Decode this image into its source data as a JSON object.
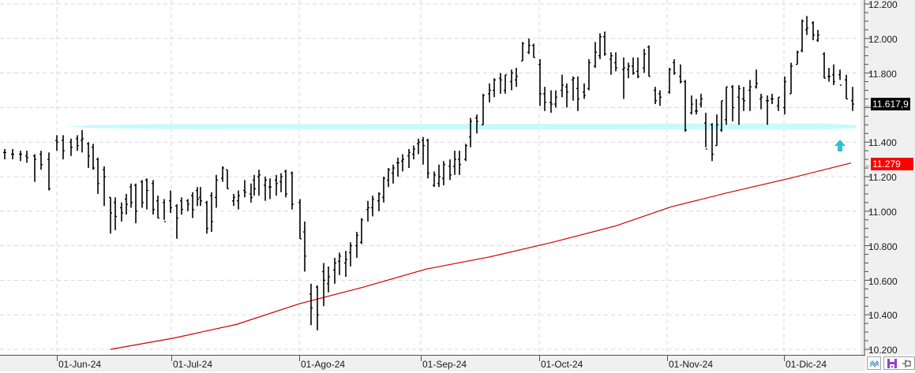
{
  "chart_data": {
    "type": "ohlc",
    "title": "",
    "xlabel": "",
    "ylabel": "",
    "ylim": [
      10200,
      12200
    ],
    "y_ticks": [
      "12.200",
      "12.000",
      "11.800",
      "11.600",
      "11.400",
      "11.200",
      "11.000",
      "10.800",
      "10.600",
      "10.400",
      "10.200"
    ],
    "x_ticks": [
      "01-Jun-24",
      "01-Jul-24",
      "01-Ago-24",
      "01-Sep-24",
      "01-Oct-24",
      "01-Nov-24",
      "01-Dic-24"
    ],
    "grid": true,
    "last_price_label": "11.617,9",
    "moving_average_label": "11.279",
    "support_level": 11490,
    "moving_average": {
      "color": "#cc0000",
      "points": [
        [
          140,
          10200
        ],
        [
          220,
          10265
        ],
        [
          300,
          10345
        ],
        [
          380,
          10465
        ],
        [
          460,
          10560
        ],
        [
          540,
          10665
        ],
        [
          620,
          10735
        ],
        [
          700,
          10820
        ],
        [
          780,
          10915
        ],
        [
          850,
          11025
        ],
        [
          920,
          11105
        ],
        [
          1000,
          11190
        ],
        [
          1078,
          11279
        ]
      ]
    },
    "bars": [
      [
        6,
        11360,
        11300,
        11340,
        11340
      ],
      [
        16,
        11360,
        11300,
        11330,
        11330
      ],
      [
        26,
        11350,
        11290,
        11330,
        11330
      ],
      [
        34,
        11350,
        11280,
        11320,
        11310
      ],
      [
        44,
        11330,
        11170,
        11320,
        11300
      ],
      [
        52,
        11350,
        11240,
        11330,
        11270
      ],
      [
        62,
        11340,
        11120,
        11300,
        11130
      ],
      [
        72,
        11440,
        11350,
        11410,
        11400
      ],
      [
        80,
        11440,
        11300,
        11410,
        11350
      ],
      [
        90,
        11420,
        11320,
        11400,
        11370
      ],
      [
        98,
        11440,
        11350,
        11420,
        11380
      ],
      [
        104,
        11470,
        11340,
        11410,
        11420
      ],
      [
        112,
        11400,
        11250,
        11390,
        11320
      ],
      [
        118,
        11390,
        11240,
        11370,
        11250
      ],
      [
        124,
        11310,
        11100,
        11300,
        11160
      ],
      [
        132,
        11260,
        11030,
        11240,
        11200
      ],
      [
        140,
        11080,
        10870,
        11080,
        10990
      ],
      [
        146,
        11080,
        10890,
        11050,
        10970
      ],
      [
        154,
        11050,
        10940,
        11020,
        10990
      ],
      [
        160,
        11100,
        10980,
        11070,
        11040
      ],
      [
        166,
        11160,
        11020,
        11140,
        11050
      ],
      [
        172,
        11160,
        10930,
        11150,
        11000
      ],
      [
        180,
        11180,
        11020,
        11170,
        11050
      ],
      [
        186,
        11190,
        11010,
        11180,
        11120
      ],
      [
        194,
        11180,
        10980,
        11160,
        11010
      ],
      [
        200,
        11090,
        10960,
        11060,
        10960
      ],
      [
        208,
        11070,
        10950,
        11050,
        10940
      ],
      [
        216,
        11120,
        10990,
        11060,
        11020
      ],
      [
        224,
        11040,
        10840,
        11030,
        10960
      ],
      [
        230,
        11080,
        10980,
        11060,
        11010
      ],
      [
        238,
        11070,
        11000,
        11060,
        11040
      ],
      [
        244,
        11110,
        10960,
        11090,
        11010
      ],
      [
        250,
        11140,
        11030,
        11120,
        11070
      ],
      [
        254,
        11140,
        11030,
        11080,
        11060
      ],
      [
        262,
        11060,
        10870,
        11050,
        10900
      ],
      [
        268,
        11110,
        10880,
        11090,
        10940
      ],
      [
        274,
        11210,
        11020,
        11080,
        11180
      ],
      [
        282,
        11260,
        11170,
        11190,
        11250
      ],
      [
        288,
        11240,
        11130,
        11240,
        11130
      ],
      [
        296,
        11100,
        11030,
        11060,
        11080
      ],
      [
        302,
        11120,
        11010,
        11060,
        11090
      ],
      [
        310,
        11180,
        11080,
        11120,
        11110
      ],
      [
        318,
        11160,
        11050,
        11100,
        11080
      ],
      [
        322,
        11210,
        11090,
        11180,
        11130
      ],
      [
        328,
        11240,
        11090,
        11200,
        11210
      ],
      [
        336,
        11200,
        11060,
        11150,
        11180
      ],
      [
        342,
        11190,
        11070,
        11140,
        11140
      ],
      [
        350,
        11210,
        11090,
        11180,
        11160
      ],
      [
        356,
        11220,
        11110,
        11170,
        11200
      ],
      [
        362,
        11240,
        11080,
        11230,
        11100
      ],
      [
        370,
        11230,
        11010,
        11220,
        11040
      ],
      [
        380,
        11070,
        10840,
        11050,
        10840
      ],
      [
        386,
        10940,
        10650,
        10880,
        10740
      ],
      [
        394,
        10580,
        10340,
        10520,
        10440
      ],
      [
        402,
        10570,
        10310,
        10560,
        10400
      ],
      [
        410,
        10700,
        10450,
        10650,
        10600
      ],
      [
        416,
        10680,
        10530,
        10580,
        10620
      ],
      [
        424,
        10730,
        10580,
        10660,
        10700
      ],
      [
        430,
        10760,
        10630,
        10710,
        10740
      ],
      [
        438,
        10770,
        10620,
        10700,
        10720
      ],
      [
        444,
        10820,
        10680,
        10760,
        10800
      ],
      [
        452,
        10880,
        10730,
        10800,
        10860
      ],
      [
        458,
        10960,
        10810,
        10820,
        10950
      ],
      [
        466,
        11060,
        10940,
        11010,
        11020
      ],
      [
        472,
        11090,
        10970,
        11020,
        11070
      ],
      [
        480,
        11110,
        11000,
        11060,
        11100
      ],
      [
        486,
        11200,
        11050,
        11080,
        11190
      ],
      [
        492,
        11250,
        11140,
        11180,
        11240
      ],
      [
        498,
        11270,
        11160,
        11220,
        11250
      ],
      [
        504,
        11310,
        11200,
        11280,
        11280
      ],
      [
        510,
        11330,
        11230,
        11290,
        11300
      ],
      [
        518,
        11360,
        11250,
        11320,
        11340
      ],
      [
        524,
        11380,
        11300,
        11330,
        11360
      ],
      [
        530,
        11420,
        11330,
        11390,
        11400
      ],
      [
        536,
        11430,
        11270,
        11410,
        11380
      ],
      [
        542,
        11420,
        11190,
        11410,
        11220
      ],
      [
        550,
        11230,
        11140,
        11150,
        11210
      ],
      [
        556,
        11270,
        11140,
        11160,
        11200
      ],
      [
        562,
        11290,
        11150,
        11190,
        11270
      ],
      [
        570,
        11300,
        11180,
        11260,
        11210
      ],
      [
        576,
        11350,
        11210,
        11260,
        11300
      ],
      [
        582,
        11350,
        11210,
        11300,
        11270
      ],
      [
        590,
        11390,
        11290,
        11300,
        11380
      ],
      [
        596,
        11540,
        11370,
        11430,
        11520
      ],
      [
        604,
        11560,
        11450,
        11540,
        11520
      ],
      [
        612,
        11680,
        11500,
        11500,
        11670
      ],
      [
        620,
        11740,
        11630,
        11680,
        11700
      ],
      [
        626,
        11770,
        11660,
        11700,
        11760
      ],
      [
        634,
        11800,
        11680,
        11770,
        11760
      ],
      [
        640,
        11790,
        11680,
        11700,
        11790
      ],
      [
        648,
        11820,
        11700,
        11750,
        11800
      ],
      [
        654,
        11830,
        11720,
        11760,
        11780
      ],
      [
        662,
        11980,
        11870,
        11870,
        11970
      ],
      [
        670,
        12000,
        11910,
        11920,
        11960
      ],
      [
        676,
        11970,
        11890,
        11960,
        11890
      ],
      [
        684,
        11880,
        11610,
        11850,
        11680
      ],
      [
        690,
        11720,
        11580,
        11680,
        11630
      ],
      [
        698,
        11700,
        11570,
        11630,
        11620
      ],
      [
        704,
        11700,
        11600,
        11620,
        11660
      ],
      [
        712,
        11790,
        11660,
        11700,
        11730
      ],
      [
        718,
        11740,
        11600,
        11720,
        11690
      ],
      [
        726,
        11780,
        11640,
        11760,
        11770
      ],
      [
        732,
        11780,
        11580,
        11710,
        11650
      ],
      [
        740,
        11740,
        11650,
        11690,
        11670
      ],
      [
        746,
        11880,
        11700,
        11710,
        11860
      ],
      [
        754,
        11980,
        11830,
        11840,
        11920
      ],
      [
        760,
        12030,
        11880,
        11900,
        12010
      ],
      [
        766,
        12040,
        11900,
        12010,
        11910
      ],
      [
        774,
        11920,
        11790,
        11880,
        11900
      ],
      [
        780,
        11920,
        11810,
        11860,
        11830
      ],
      [
        790,
        11890,
        11650,
        11820,
        11830
      ],
      [
        796,
        11860,
        11770,
        11820,
        11840
      ],
      [
        802,
        11890,
        11790,
        11840,
        11800
      ],
      [
        808,
        11890,
        11770,
        11810,
        11780
      ],
      [
        816,
        11940,
        11800,
        11830,
        11910
      ],
      [
        822,
        11960,
        11780,
        11950,
        11780
      ],
      [
        830,
        11720,
        11620,
        11700,
        11640
      ],
      [
        836,
        11700,
        11610,
        11680,
        11660
      ],
      [
        848,
        11830,
        11680,
        11690,
        11820
      ],
      [
        854,
        11880,
        11790,
        11860,
        11800
      ],
      [
        862,
        11850,
        11740,
        11780,
        11750
      ],
      [
        868,
        11760,
        11460,
        11750,
        11470
      ],
      [
        876,
        11670,
        11560,
        11570,
        11620
      ],
      [
        882,
        11650,
        11560,
        11580,
        11580
      ],
      [
        888,
        11680,
        11600,
        11620,
        11650
      ],
      [
        894,
        11570,
        11370,
        11510,
        11360
      ],
      [
        902,
        11510,
        11290,
        11500,
        11330
      ],
      [
        908,
        11560,
        11380,
        11380,
        11500
      ],
      [
        914,
        11640,
        11460,
        11470,
        11640
      ],
      [
        920,
        11720,
        11500,
        11530,
        11720
      ],
      [
        928,
        11730,
        11520,
        11720,
        11600
      ],
      [
        936,
        11730,
        11500,
        11660,
        11710
      ],
      [
        942,
        11720,
        11580,
        11650,
        11640
      ],
      [
        950,
        11760,
        11580,
        11700,
        11720
      ],
      [
        958,
        11820,
        11710,
        11720,
        11740
      ],
      [
        964,
        11680,
        11590,
        11650,
        11660
      ],
      [
        972,
        11670,
        11500,
        11640,
        11640
      ],
      [
        978,
        11680,
        11620,
        11650,
        11650
      ],
      [
        986,
        11660,
        11580,
        11610,
        11660
      ],
      [
        994,
        11780,
        11560,
        11600,
        11750
      ],
      [
        1002,
        11860,
        11680,
        11680,
        11840
      ],
      [
        1010,
        11930,
        11850,
        11850,
        11920
      ],
      [
        1016,
        12110,
        11920,
        11930,
        12100
      ],
      [
        1022,
        12130,
        12020,
        12050,
        12060
      ],
      [
        1030,
        12100,
        11990,
        12090,
        12020
      ],
      [
        1036,
        12050,
        11980,
        11990,
        12020
      ],
      [
        1044,
        11920,
        11770,
        11910,
        11770
      ],
      [
        1050,
        11830,
        11750,
        11780,
        11780
      ],
      [
        1056,
        11850,
        11730,
        11790,
        11750
      ],
      [
        1064,
        11820,
        11760,
        11790,
        11730
      ],
      [
        1072,
        11790,
        11650,
        11760,
        11650
      ],
      [
        1080,
        11720,
        11580,
        11640,
        11620
      ]
    ]
  },
  "y_axis": {
    "labels": [
      "12.200",
      "12.000",
      "11.800",
      "11.400",
      "11.200",
      "11.000",
      "10.800",
      "10.600",
      "10.400",
      "10.200"
    ],
    "last_price": "11.617,9",
    "ma_value": "11.279"
  },
  "x_axis": {
    "labels": [
      "01-Jun-24",
      "01-Jul-24",
      "01-Ago-24",
      "01-Sep-24",
      "01-Oct-24",
      "01-Nov-24",
      "01-Dic-24"
    ]
  },
  "toolbar": {
    "icons": [
      "chart-style-icon",
      "save-icon",
      "pin-icon"
    ]
  },
  "colors": {
    "bars": "#000000",
    "moving_average": "#cc0000",
    "support_band": "#c8fafc",
    "signal_arrow": "#2ec4c8",
    "price_tag_bg": "#000000",
    "ma_tag_bg": "#ff0000"
  }
}
